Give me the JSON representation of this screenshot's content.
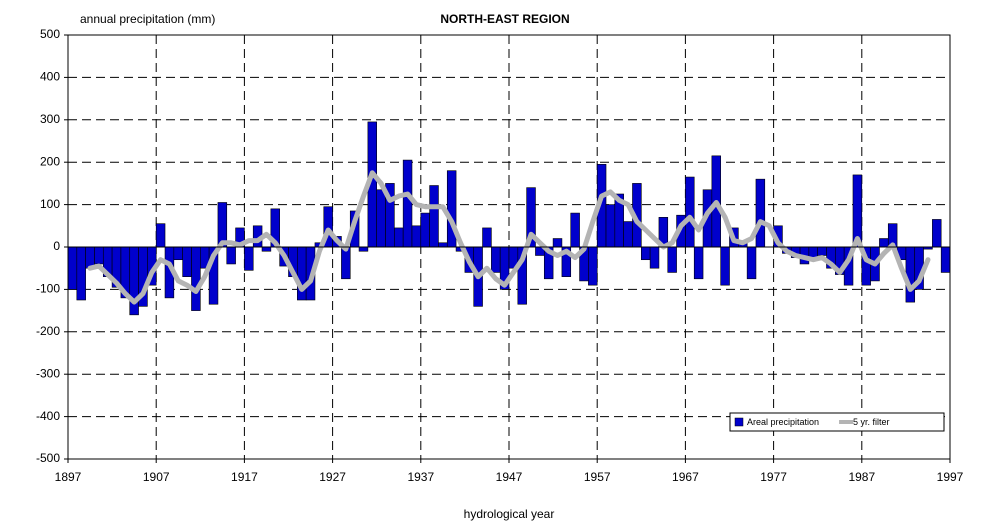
{
  "chart_data": {
    "type": "bar",
    "title": "NORTH-EAST REGION",
    "y_label": "annual precipitation (mm)",
    "x_label": "hydrological year",
    "x": [
      1898,
      1899,
      1900,
      1901,
      1902,
      1903,
      1904,
      1905,
      1906,
      1907,
      1908,
      1909,
      1910,
      1911,
      1912,
      1913,
      1914,
      1915,
      1916,
      1917,
      1918,
      1919,
      1920,
      1921,
      1922,
      1923,
      1924,
      1925,
      1926,
      1927,
      1928,
      1929,
      1930,
      1931,
      1932,
      1933,
      1934,
      1935,
      1936,
      1937,
      1938,
      1939,
      1940,
      1941,
      1942,
      1943,
      1944,
      1945,
      1946,
      1947,
      1948,
      1949,
      1950,
      1951,
      1952,
      1953,
      1954,
      1955,
      1956,
      1957,
      1958,
      1959,
      1960,
      1961,
      1962,
      1963,
      1964,
      1965,
      1966,
      1967,
      1968,
      1969,
      1970,
      1971,
      1972,
      1973,
      1974,
      1975,
      1976,
      1977,
      1978,
      1979,
      1980,
      1981,
      1982,
      1983,
      1984,
      1985,
      1986,
      1987,
      1988,
      1989,
      1990,
      1991,
      1992,
      1993,
      1994,
      1995,
      1996,
      1997
    ],
    "series": [
      {
        "name": "Areal precipitation",
        "type": "bar",
        "color": "#0000cc",
        "values": [
          -100,
          -125,
          -50,
          -40,
          -70,
          -95,
          -120,
          -160,
          -140,
          -90,
          55,
          -120,
          -30,
          -70,
          -150,
          -50,
          -135,
          105,
          -40,
          45,
          -55,
          50,
          -10,
          90,
          -45,
          -70,
          -125,
          -125,
          10,
          95,
          25,
          -75,
          85,
          -10,
          295,
          135,
          150,
          45,
          205,
          50,
          80,
          145,
          10,
          180,
          -10,
          -60,
          -140,
          45,
          -60,
          -100,
          -50,
          -135,
          140,
          -20,
          -75,
          20,
          -70,
          80,
          -80,
          -90,
          195,
          100,
          125,
          60,
          150,
          -30,
          -50,
          70,
          -60,
          75,
          165,
          -75,
          135,
          215,
          -90,
          45,
          10,
          -75,
          160,
          0,
          50,
          -15,
          -25,
          -40,
          -30,
          -20,
          -50,
          -65,
          -90,
          170,
          -90,
          -80,
          20,
          55,
          -30,
          -130,
          -100,
          -5,
          65,
          -60
        ]
      },
      {
        "name": "5 yr. filter",
        "type": "line",
        "color": "#b4b4b4",
        "values": [
          null,
          null,
          -50,
          -45,
          -65,
          -85,
          -110,
          -130,
          -110,
          -60,
          -30,
          -40,
          -80,
          -90,
          -105,
          -70,
          -20,
          10,
          10,
          5,
          15,
          15,
          30,
          10,
          -20,
          -60,
          -100,
          -80,
          -10,
          40,
          15,
          -5,
          60,
          120,
          175,
          150,
          110,
          120,
          125,
          100,
          95,
          95,
          95,
          60,
          10,
          -35,
          -70,
          -50,
          -75,
          -90,
          -60,
          -30,
          30,
          10,
          -10,
          -20,
          -10,
          -25,
          -5,
          60,
          120,
          130,
          110,
          100,
          60,
          40,
          20,
          0,
          10,
          50,
          70,
          40,
          80,
          105,
          70,
          15,
          10,
          20,
          60,
          50,
          10,
          -10,
          -20,
          -25,
          -30,
          -25,
          -40,
          -60,
          -30,
          20,
          -30,
          -40,
          -15,
          5,
          -50,
          -100,
          -80,
          -30,
          null,
          null
        ]
      }
    ],
    "xlim": [
      1897,
      1997
    ],
    "xticks": [
      1897,
      1907,
      1917,
      1927,
      1937,
      1947,
      1957,
      1967,
      1977,
      1987,
      1997
    ],
    "ylim": [
      -500,
      500
    ],
    "yticks": [
      -500,
      -400,
      -300,
      -200,
      -100,
      0,
      100,
      200,
      300,
      400,
      500
    ],
    "grid": true,
    "legend": "lower right"
  }
}
